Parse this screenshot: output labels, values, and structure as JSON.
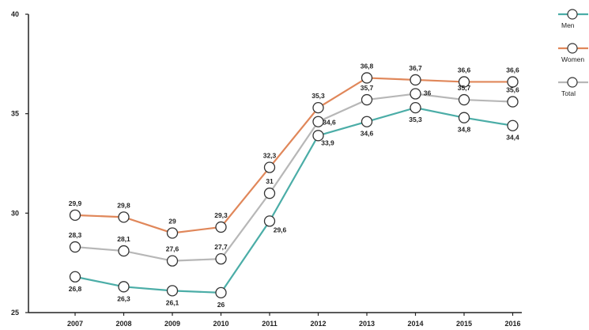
{
  "chart_data": {
    "type": "line",
    "title": "",
    "xlabel": "",
    "ylabel": "",
    "x": [
      "2007",
      "2008",
      "2009",
      "2010",
      "2011",
      "2012",
      "2013",
      "2014",
      "2015",
      "2016"
    ],
    "ylim": [
      25,
      40
    ],
    "yticks": [
      "25",
      "30",
      "35",
      "40"
    ],
    "grid": false,
    "legend_position": "top-right",
    "series": [
      {
        "name": "Men",
        "color": "#4bada7",
        "values": [
          26.8,
          26.3,
          26.1,
          26,
          29.6,
          33.9,
          34.6,
          35.3,
          34.8,
          34.4
        ],
        "labels": [
          "26,8",
          "26,3",
          "26,1",
          "26",
          "29,6",
          "33,9",
          "34,6",
          "35,3",
          "34,8",
          "34,4"
        ]
      },
      {
        "name": "Women",
        "color": "#e0875a",
        "values": [
          29.9,
          29.8,
          29,
          29.3,
          32.3,
          35.3,
          36.8,
          36.7,
          36.6,
          36.6
        ],
        "labels": [
          "29,9",
          "29,8",
          "29",
          "29,3",
          "32,3",
          "35,3",
          "36,8",
          "36,7",
          "36,6",
          "36,6"
        ]
      },
      {
        "name": "Total",
        "color": "#b7b7b7",
        "values": [
          28.3,
          28.1,
          27.6,
          27.7,
          31,
          34.6,
          35.7,
          36,
          35.7,
          35.6
        ],
        "labels": [
          "28,3",
          "28,1",
          "27,6",
          "27,7",
          "31",
          "34,6",
          "35,7",
          "36",
          "35,7",
          "35,6"
        ]
      }
    ]
  }
}
